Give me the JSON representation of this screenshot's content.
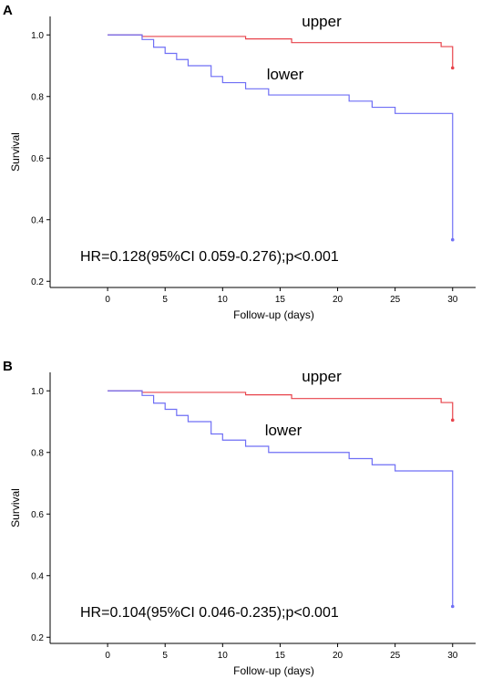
{
  "chart_data": [
    {
      "type": "line",
      "panel": "A",
      "xlabel": "Follow-up (days)",
      "ylabel": "Survival",
      "xlim": [
        -5,
        32
      ],
      "ylim": [
        0.18,
        1.06
      ],
      "xticks": [
        0,
        5,
        10,
        15,
        20,
        25,
        30
      ],
      "yticks": [
        0.2,
        0.4,
        0.6,
        0.8,
        1.0
      ],
      "ytick_labels": [
        "0.2",
        "0.4",
        "0.6",
        "0.8",
        "1.0"
      ],
      "grid": false,
      "annotation": "HR=0.128(95%CI 0.059-0.276);p<0.001",
      "series": [
        {
          "name": "upper",
          "color": "#e8434b",
          "x": [
            0,
            3,
            12,
            16,
            29,
            30,
            30
          ],
          "y": [
            1.0,
            0.995,
            0.987,
            0.975,
            0.962,
            0.962,
            0.893
          ],
          "censor": [
            [
              30,
              0.893
            ]
          ]
        },
        {
          "name": "lower",
          "color": "#6f6ff5",
          "x": [
            0,
            3,
            4,
            5,
            6,
            7,
            9,
            10,
            12,
            14,
            21,
            23,
            25,
            30,
            30
          ],
          "y": [
            1.0,
            0.985,
            0.96,
            0.94,
            0.92,
            0.9,
            0.865,
            0.845,
            0.825,
            0.805,
            0.785,
            0.765,
            0.745,
            0.745,
            0.335
          ],
          "censor": [
            [
              30,
              0.335
            ]
          ]
        }
      ]
    },
    {
      "type": "line",
      "panel": "B",
      "xlabel": "Follow-up (days)",
      "ylabel": "Survival",
      "xlim": [
        -5,
        32
      ],
      "ylim": [
        0.18,
        1.06
      ],
      "xticks": [
        0,
        5,
        10,
        15,
        20,
        25,
        30
      ],
      "yticks": [
        0.2,
        0.4,
        0.6,
        0.8,
        1.0
      ],
      "ytick_labels": [
        "0.2",
        "0.4",
        "0.6",
        "0.8",
        "1.0"
      ],
      "grid": false,
      "annotation": "HR=0.104(95%CI 0.046-0.235);p<0.001",
      "series": [
        {
          "name": "upper",
          "color": "#e8434b",
          "x": [
            0,
            3,
            12,
            16,
            29,
            30,
            30
          ],
          "y": [
            1.0,
            0.995,
            0.987,
            0.975,
            0.962,
            0.962,
            0.905
          ],
          "censor": [
            [
              30,
              0.905
            ]
          ]
        },
        {
          "name": "lower",
          "color": "#6f6ff5",
          "x": [
            0,
            3,
            4,
            5,
            6,
            7,
            9,
            10,
            12,
            14,
            21,
            23,
            25,
            30,
            30
          ],
          "y": [
            1.0,
            0.985,
            0.96,
            0.94,
            0.92,
            0.9,
            0.86,
            0.84,
            0.82,
            0.8,
            0.78,
            0.76,
            0.74,
            0.74,
            0.3
          ],
          "censor": [
            [
              30,
              0.3
            ]
          ]
        }
      ]
    }
  ]
}
